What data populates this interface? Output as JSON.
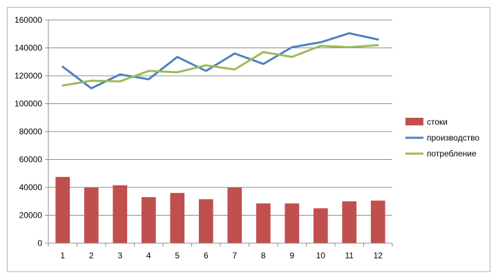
{
  "chart_data": {
    "type": "bar",
    "categories": [
      "1",
      "2",
      "3",
      "4",
      "5",
      "6",
      "7",
      "8",
      "9",
      "10",
      "11",
      "12"
    ],
    "ylim": [
      0,
      160000
    ],
    "ytick_step": 20000,
    "yticks": [
      "0",
      "20000",
      "40000",
      "60000",
      "80000",
      "100000",
      "120000",
      "140000",
      "160000"
    ],
    "grid": true,
    "legend_position": "right",
    "series": [
      {
        "name": "стоки",
        "kind": "bar",
        "color": "#c0504d",
        "values": [
          47500,
          39800,
          41500,
          33000,
          36000,
          31500,
          40000,
          28500,
          28500,
          25000,
          30000,
          30500
        ]
      },
      {
        "name": "производство",
        "kind": "line",
        "color": "#4f81bd",
        "values": [
          126500,
          111000,
          121000,
          117500,
          133500,
          123500,
          136000,
          128500,
          140500,
          144000,
          150500,
          146000
        ]
      },
      {
        "name": "потребление",
        "kind": "line",
        "color": "#9bbb59",
        "values": [
          113000,
          116500,
          116000,
          123500,
          122500,
          127500,
          124500,
          137000,
          133500,
          141500,
          140500,
          142000
        ]
      }
    ]
  }
}
